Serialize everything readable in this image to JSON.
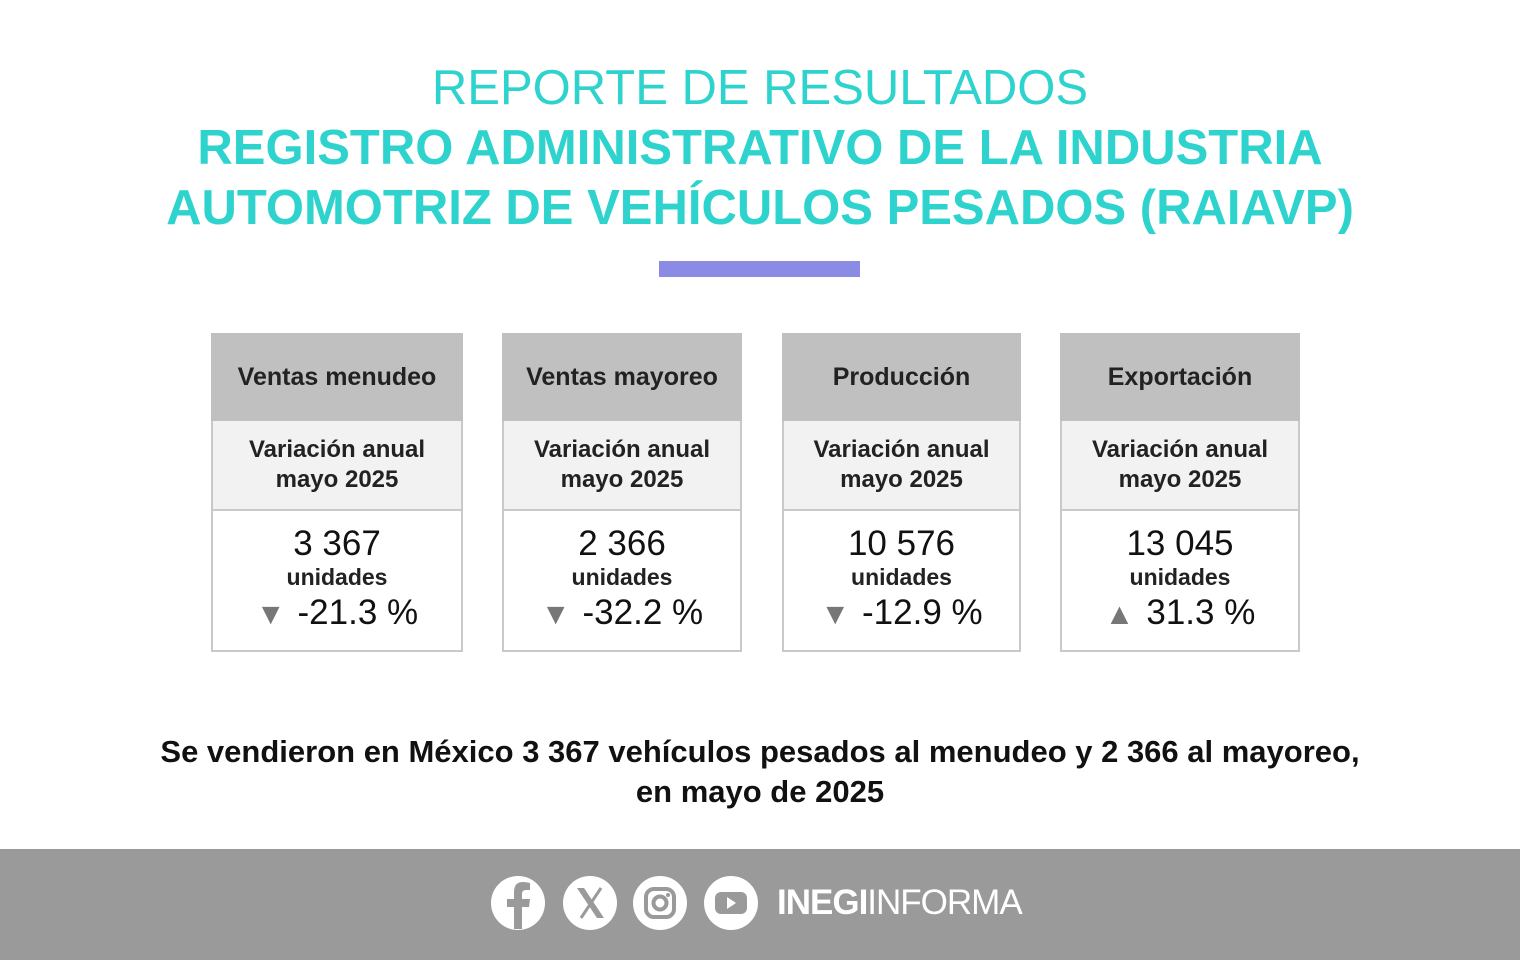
{
  "header": {
    "line1": "REPORTE DE RESULTADOS",
    "line2": "REGISTRO ADMINISTRATIVO DE LA INDUSTRIA",
    "line3": "AUTOMOTRIZ DE VEHÍCULOS PESADOS (RAIAVP)"
  },
  "cards": [
    {
      "title": "Ventas menudeo",
      "subtitle1": "Variación anual",
      "subtitle2": "mayo 2025",
      "value": "3 367",
      "unit": "unidades",
      "change": "-21.3 %"
    },
    {
      "title": "Ventas mayoreo",
      "subtitle1": "Variación anual",
      "subtitle2": "mayo 2025",
      "value": "2 366",
      "unit": "unidades",
      "change": "-32.2 %"
    },
    {
      "title": "Producción",
      "subtitle1": "Variación anual",
      "subtitle2": "mayo 2025",
      "value": "10 576",
      "unit": "unidades",
      "change": "-12.9 %"
    },
    {
      "title": "Exportación",
      "subtitle1": "Variación anual",
      "subtitle2": "mayo 2025",
      "value": "13 045",
      "unit": "unidades",
      "change": "31.3 %"
    }
  ],
  "summary": {
    "line1": "Se vendieron en México 3 367 vehículos pesados al menudeo y 2 366 al mayoreo,",
    "line2": "en mayo de 2025"
  },
  "footer": {
    "brand_bold": "INEGI",
    "brand_light": "INFORMA"
  }
}
